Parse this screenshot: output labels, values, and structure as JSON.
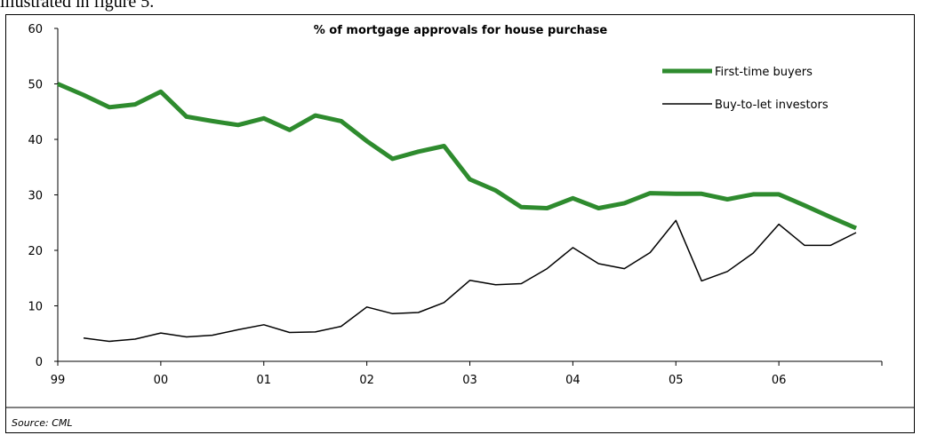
{
  "page": {
    "top_text": "illustrated in figure 5."
  },
  "chart_data": {
    "type": "line",
    "title": "% of mortgage approvals for house purchase",
    "xlabel": "",
    "ylabel": "",
    "x_tick_labels": [
      "99",
      "00",
      "01",
      "02",
      "03",
      "04",
      "05",
      "06"
    ],
    "y_ticks": [
      0,
      10,
      20,
      30,
      40,
      50,
      60
    ],
    "ylim": [
      0,
      60
    ],
    "xlim": [
      0,
      8
    ],
    "grid": false,
    "legend_position": "top-right",
    "source": "Source: CML",
    "series": [
      {
        "name": "First-time buyers",
        "color": "#2e8b2e",
        "style": "thick",
        "x": [
          0,
          0.25,
          0.5,
          0.75,
          1,
          1.25,
          1.5,
          1.75,
          2,
          2.25,
          2.5,
          2.75,
          3,
          3.25,
          3.5,
          3.75,
          4,
          4.25,
          4.5,
          4.75,
          5,
          5.25,
          5.5,
          5.75,
          6,
          6.25,
          6.5,
          6.75,
          7,
          7.25,
          7.5,
          7.75
        ],
        "y": [
          50,
          48,
          45.8,
          46.3,
          48.6,
          44.1,
          43.3,
          42.6,
          43.8,
          41.7,
          44.3,
          43.3,
          39.7,
          36.5,
          37.8,
          38.8,
          32.8,
          30.8,
          27.8,
          27.6,
          29.4,
          27.6,
          28.5,
          30.3,
          30.2,
          30.2,
          29.2,
          30.1,
          30.1,
          28.1,
          26.0,
          24.0
        ]
      },
      {
        "name": "Buy-to-let investors",
        "color": "#000000",
        "style": "thin",
        "x": [
          0.25,
          0.5,
          0.75,
          1,
          1.25,
          1.5,
          1.75,
          2,
          2.25,
          2.5,
          2.75,
          3,
          3.25,
          3.5,
          3.75,
          4,
          4.25,
          4.5,
          4.75,
          5,
          5.25,
          5.5,
          5.75,
          6,
          6.25,
          6.5,
          6.75,
          7,
          7.25,
          7.5,
          7.75
        ],
        "y": [
          4.2,
          3.6,
          4.0,
          5.1,
          4.4,
          4.7,
          5.7,
          6.6,
          5.2,
          5.3,
          6.3,
          9.8,
          8.6,
          8.8,
          10.6,
          14.6,
          13.8,
          14.0,
          16.7,
          20.5,
          17.6,
          16.7,
          19.6,
          25.4,
          14.5,
          16.2,
          19.5,
          24.7,
          20.9,
          20.9,
          23.2
        ]
      }
    ]
  }
}
